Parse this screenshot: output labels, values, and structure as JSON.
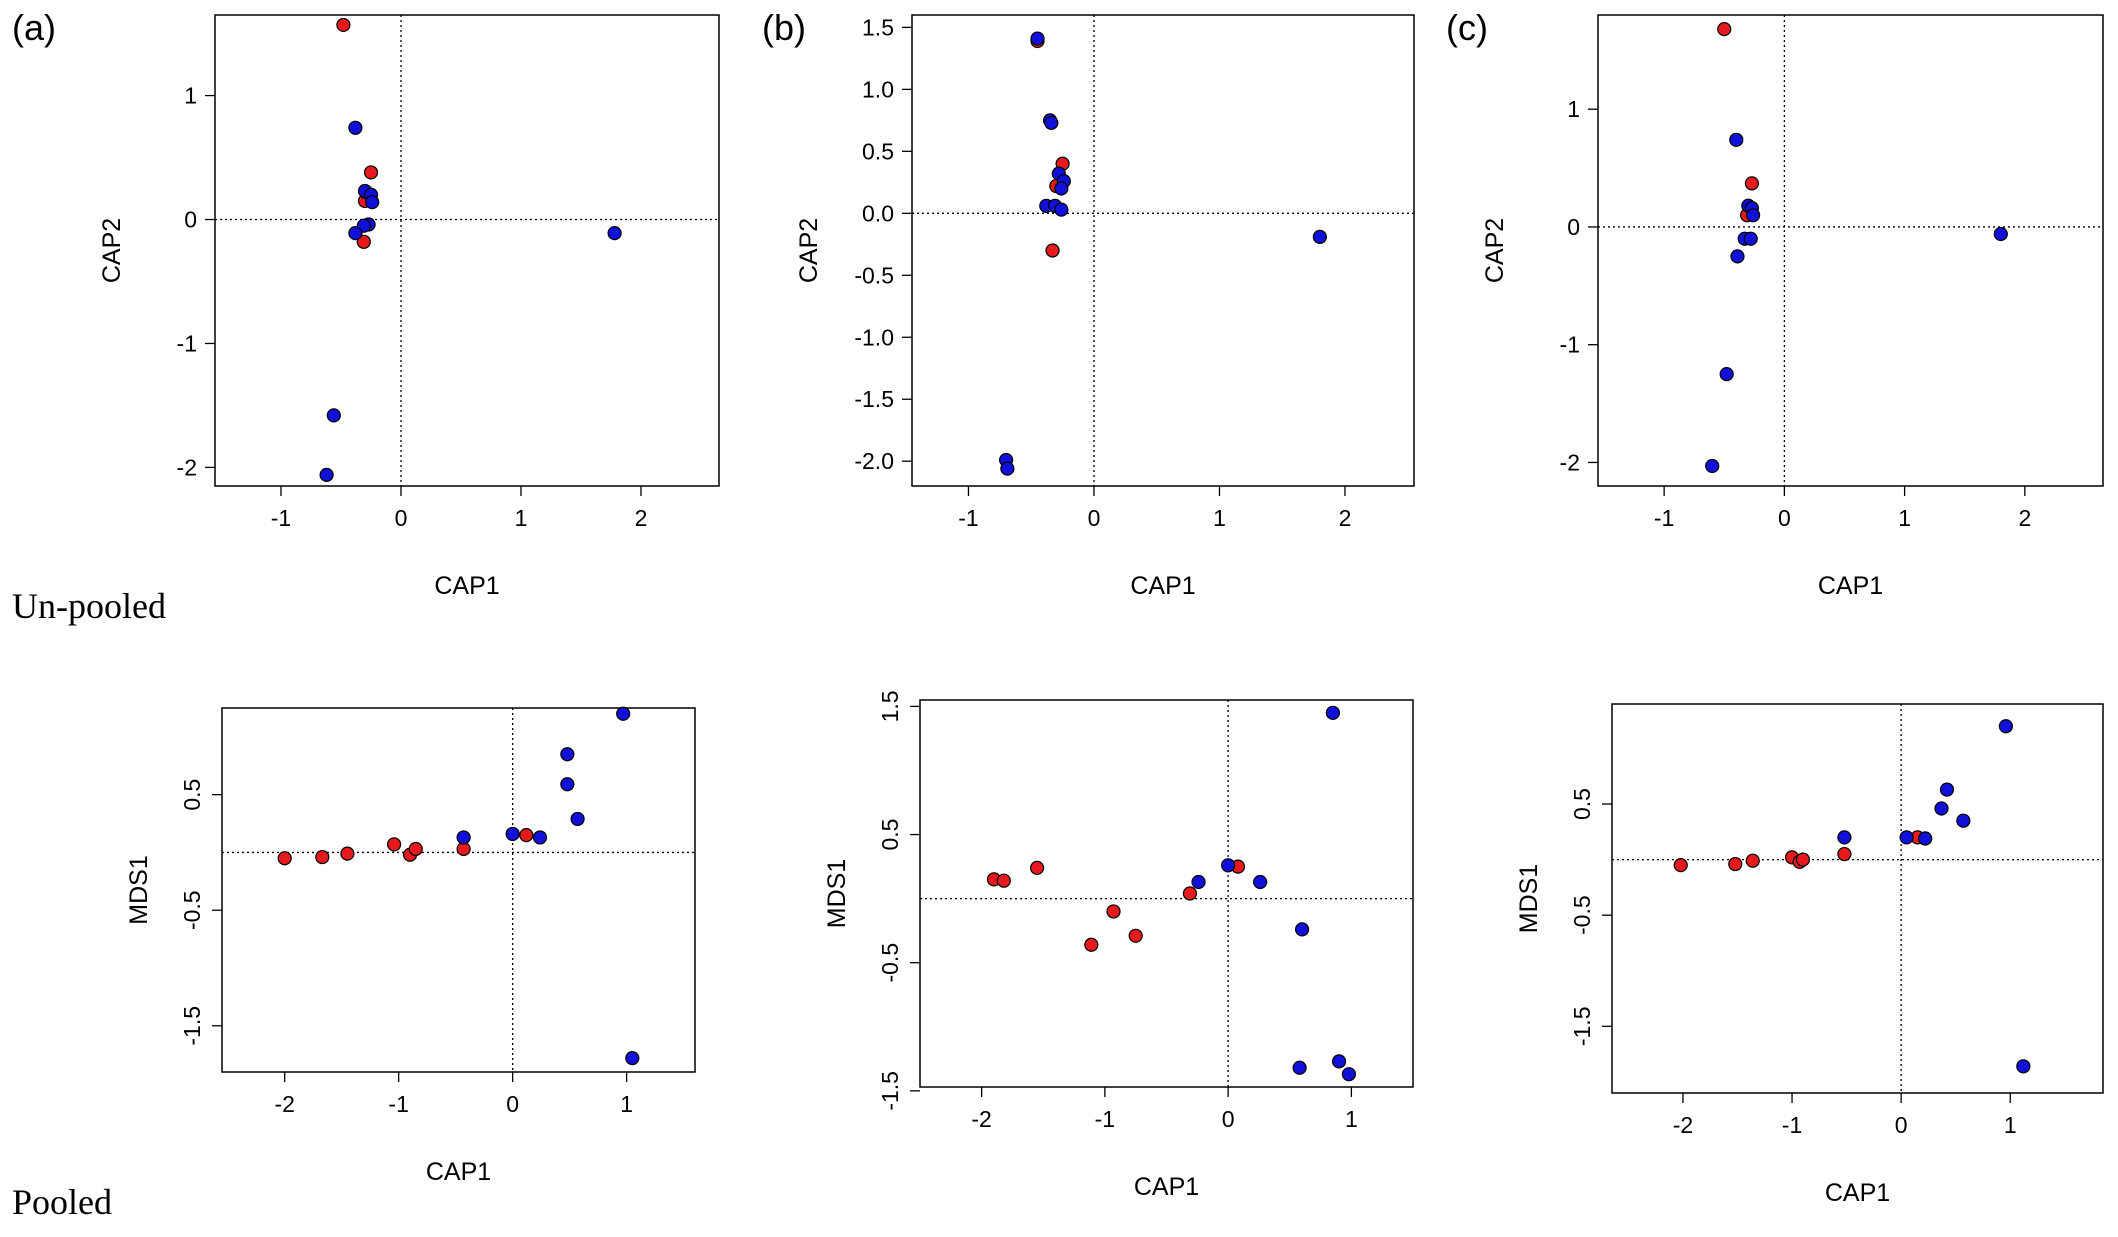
{
  "panel_tags": [
    "(a)",
    "(b)",
    "(c)"
  ],
  "row_labels": {
    "top": "Un-pooled",
    "bottom": "Pooled"
  },
  "colors": {
    "group_red": "#e41a1c",
    "group_blue": "#1010d8",
    "frame": "#000000"
  },
  "chart_data": [
    {
      "type": "scatter",
      "xlabel": "CAP1",
      "ylabel": "CAP2",
      "xlim": [
        -1.55,
        2.65
      ],
      "ylim": [
        -2.15,
        1.65
      ],
      "xticks": [
        "-1",
        "0",
        "1",
        "2"
      ],
      "yticks": [
        "-2",
        "-1",
        "0",
        "1"
      ],
      "reference_lines": {
        "x": 0,
        "y": 0
      },
      "series": [
        {
          "color": "red",
          "points": [
            [
              -0.48,
              1.57
            ],
            [
              -0.25,
              0.38
            ],
            [
              -0.3,
              0.15
            ],
            [
              -0.29,
              0.22
            ],
            [
              -0.31,
              -0.18
            ]
          ]
        },
        {
          "color": "blue",
          "points": [
            [
              -0.38,
              0.74
            ],
            [
              -0.3,
              0.23
            ],
            [
              -0.25,
              0.2
            ],
            [
              -0.24,
              0.14
            ],
            [
              -0.27,
              -0.04
            ],
            [
              -0.31,
              -0.05
            ],
            [
              -0.38,
              -0.11
            ],
            [
              -0.56,
              -1.58
            ],
            [
              -0.62,
              -2.06
            ],
            [
              1.78,
              -0.11
            ]
          ]
        }
      ]
    },
    {
      "type": "scatter",
      "xlabel": "CAP1",
      "ylabel": "CAP2",
      "xlim": [
        -1.45,
        2.55
      ],
      "ylim": [
        -2.2,
        1.6
      ],
      "xticks": [
        "-1",
        "0",
        "1",
        "2"
      ],
      "yticks": [
        "-2.0",
        "-1.5",
        "-1.0",
        "-0.5",
        "0.0",
        "0.5",
        "1.0",
        "1.5"
      ],
      "reference_lines": {
        "x": 0,
        "y": 0
      },
      "series": [
        {
          "color": "red",
          "points": [
            [
              -0.45,
              1.39
            ],
            [
              -0.25,
              0.4
            ],
            [
              -0.3,
              0.22
            ],
            [
              -0.33,
              -0.3
            ]
          ]
        },
        {
          "color": "blue",
          "points": [
            [
              -0.45,
              1.41
            ],
            [
              -0.35,
              0.75
            ],
            [
              -0.34,
              0.73
            ],
            [
              -0.28,
              0.32
            ],
            [
              -0.24,
              0.26
            ],
            [
              -0.26,
              0.2
            ],
            [
              -0.38,
              0.06
            ],
            [
              -0.31,
              0.06
            ],
            [
              -0.26,
              0.03
            ],
            [
              -0.7,
              -1.99
            ],
            [
              -0.69,
              -2.06
            ],
            [
              1.8,
              -0.19
            ]
          ]
        }
      ]
    },
    {
      "type": "scatter",
      "xlabel": "CAP1",
      "ylabel": "CAP2",
      "xlim": [
        -1.55,
        2.65
      ],
      "ylim": [
        -2.2,
        1.8
      ],
      "xticks": [
        "-1",
        "0",
        "1",
        "2"
      ],
      "yticks": [
        "-2",
        "-1",
        "0",
        "1"
      ],
      "reference_lines": {
        "x": 0,
        "y": 0
      },
      "series": [
        {
          "color": "red",
          "points": [
            [
              -0.5,
              1.68
            ],
            [
              -0.27,
              0.37
            ],
            [
              -0.31,
              0.1
            ]
          ]
        },
        {
          "color": "blue",
          "points": [
            [
              -0.4,
              0.74
            ],
            [
              -0.3,
              0.18
            ],
            [
              -0.27,
              0.16
            ],
            [
              -0.26,
              0.1
            ],
            [
              -0.33,
              -0.1
            ],
            [
              -0.28,
              -0.1
            ],
            [
              -0.39,
              -0.25
            ],
            [
              -0.48,
              -1.25
            ],
            [
              -0.6,
              -2.03
            ],
            [
              1.8,
              -0.06
            ]
          ]
        }
      ]
    },
    {
      "type": "scatter",
      "xlabel": "CAP1",
      "ylabel": "MDS1",
      "xlim": [
        -2.55,
        1.6
      ],
      "ylim": [
        -1.9,
        1.25
      ],
      "xticks": [
        "-2",
        "-1",
        "0",
        "1"
      ],
      "yticks": [
        "-1.5",
        "-0.5",
        "0.5"
      ],
      "reference_lines": {
        "x": 0,
        "y": 0
      },
      "series": [
        {
          "color": "red",
          "points": [
            [
              -2.0,
              -0.05
            ],
            [
              -1.67,
              -0.04
            ],
            [
              -1.45,
              -0.01
            ],
            [
              -1.04,
              0.07
            ],
            [
              -0.9,
              -0.02
            ],
            [
              -0.85,
              0.03
            ],
            [
              -0.43,
              0.03
            ],
            [
              0.12,
              0.15
            ]
          ]
        },
        {
          "color": "blue",
          "points": [
            [
              -0.43,
              0.13
            ],
            [
              0.0,
              0.16
            ],
            [
              0.24,
              0.13
            ],
            [
              0.57,
              0.29
            ],
            [
              0.48,
              0.59
            ],
            [
              0.48,
              0.85
            ],
            [
              0.97,
              1.2
            ],
            [
              1.05,
              -1.78
            ]
          ]
        }
      ]
    },
    {
      "type": "scatter",
      "xlabel": "CAP1",
      "ylabel": "MDS1",
      "xlim": [
        -2.5,
        1.5
      ],
      "ylim": [
        -1.47,
        1.55
      ],
      "xticks": [
        "-2",
        "-1",
        "0",
        "1"
      ],
      "yticks": [
        "-1.5",
        "-0.5",
        "0.5",
        "1.5"
      ],
      "reference_lines": {
        "x": 0,
        "y": 0
      },
      "series": [
        {
          "color": "red",
          "points": [
            [
              -1.9,
              0.15
            ],
            [
              -1.82,
              0.14
            ],
            [
              -1.55,
              0.24
            ],
            [
              -0.93,
              -0.1
            ],
            [
              -1.11,
              -0.36
            ],
            [
              -0.75,
              -0.29
            ],
            [
              -0.31,
              0.04
            ],
            [
              0.08,
              0.25
            ]
          ]
        },
        {
          "color": "blue",
          "points": [
            [
              -0.24,
              0.13
            ],
            [
              0.0,
              0.26
            ],
            [
              0.26,
              0.13
            ],
            [
              0.6,
              -0.24
            ],
            [
              0.85,
              1.45
            ],
            [
              0.58,
              -1.32
            ],
            [
              0.9,
              -1.27
            ],
            [
              0.98,
              -1.37
            ]
          ]
        }
      ]
    },
    {
      "type": "scatter",
      "xlabel": "CAP1",
      "ylabel": "MDS1",
      "xlim": [
        -2.65,
        1.85
      ],
      "ylim": [
        -2.1,
        1.4
      ],
      "xticks": [
        "-2",
        "-1",
        "0",
        "1"
      ],
      "yticks": [
        "-1.5",
        "-0.5",
        "0.5"
      ],
      "reference_lines": {
        "x": 0,
        "y": 0
      },
      "series": [
        {
          "color": "red",
          "points": [
            [
              -2.02,
              -0.05
            ],
            [
              -1.52,
              -0.04
            ],
            [
              -1.36,
              -0.01
            ],
            [
              -1.0,
              0.02
            ],
            [
              -0.93,
              -0.02
            ],
            [
              -0.9,
              0.0
            ],
            [
              -0.52,
              0.05
            ],
            [
              0.15,
              0.2
            ],
            [
              0.22,
              0.19
            ]
          ]
        },
        {
          "color": "blue",
          "points": [
            [
              -0.52,
              0.2
            ],
            [
              0.05,
              0.2
            ],
            [
              0.22,
              0.19
            ],
            [
              0.37,
              0.46
            ],
            [
              0.42,
              0.63
            ],
            [
              0.57,
              0.35
            ],
            [
              0.96,
              1.2
            ],
            [
              1.12,
              -1.86
            ]
          ]
        }
      ]
    }
  ]
}
